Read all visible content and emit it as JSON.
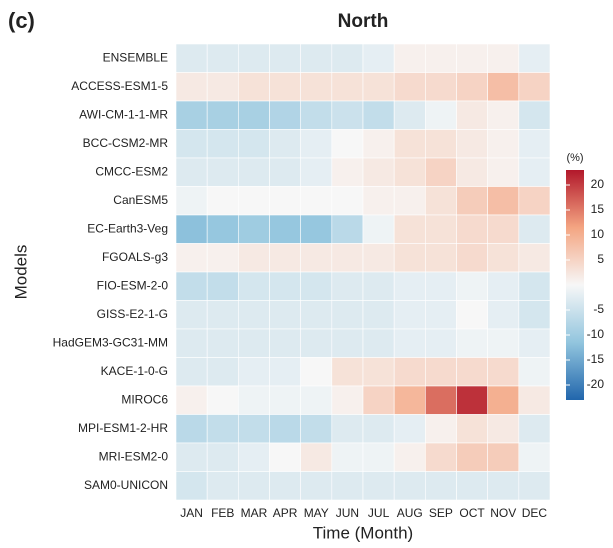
{
  "chart_data": {
    "type": "heatmap",
    "panel_label": "(c)",
    "title": "North",
    "x_label": "Time (Month)",
    "y_label": "Models",
    "categories": [
      "JAN",
      "FEB",
      "MAR",
      "APR",
      "MAY",
      "JUN",
      "JUL",
      "AUG",
      "SEP",
      "OCT",
      "NOV",
      "DEC"
    ],
    "rows": [
      "ENSEMBLE",
      "ACCESS-ESM1-5",
      "AWI-CM-1-1-MR",
      "BCC-CSM2-MR",
      "CMCC-ESM2",
      "CanESM5",
      "EC-Earth3-Veg",
      "FGOALS-g3",
      "FIO-ESM-2-0",
      "GISS-E2-1-G",
      "HadGEM3-GC31-MM",
      "KACE-1-0-G",
      "MIROC6",
      "MPI-ESM1-2-HR",
      "MRI-ESM2-0",
      "SAM0-UNICON"
    ],
    "values": [
      [
        -3,
        -3,
        -3,
        -3,
        -3,
        -3,
        -2,
        1,
        1,
        1,
        1,
        -2
      ],
      [
        2,
        2,
        3,
        3,
        3,
        3,
        3,
        4,
        4,
        5,
        8,
        5
      ],
      [
        -9,
        -9,
        -9,
        -8,
        -6,
        -5,
        -6,
        -3,
        -1,
        2,
        1,
        -4
      ],
      [
        -4,
        -4,
        -4,
        -3,
        -2,
        0,
        1,
        3,
        3,
        2,
        1,
        -2
      ],
      [
        -3,
        -3,
        -3,
        -3,
        -2,
        1,
        2,
        3,
        5,
        2,
        1,
        -2
      ],
      [
        -1,
        0,
        0,
        0,
        0,
        0,
        1,
        1,
        3,
        6,
        8,
        5
      ],
      [
        -12,
        -11,
        -10,
        -11,
        -11,
        -7,
        -1,
        3,
        3,
        4,
        4,
        -3
      ],
      [
        1,
        1,
        2,
        2,
        2,
        2,
        2,
        3,
        3,
        4,
        3,
        2
      ],
      [
        -6,
        -6,
        -4,
        -4,
        -4,
        -3,
        -3,
        -2,
        -2,
        -1,
        -2,
        -4
      ],
      [
        -3,
        -3,
        -3,
        -3,
        -3,
        -3,
        -3,
        -2,
        -2,
        0,
        -2,
        -4
      ],
      [
        -3,
        -3,
        -3,
        -3,
        -3,
        -3,
        -3,
        -2,
        -2,
        -1,
        -1,
        -2
      ],
      [
        -3,
        -3,
        -2,
        -2,
        0,
        3,
        3,
        4,
        4,
        4,
        4,
        -1
      ],
      [
        1,
        0,
        -1,
        -1,
        -1,
        1,
        5,
        9,
        16,
        21,
        10,
        2
      ],
      [
        -7,
        -6,
        -6,
        -7,
        -6,
        -3,
        -3,
        -2,
        1,
        3,
        2,
        -3
      ],
      [
        -3,
        -3,
        -2,
        0,
        2,
        -1,
        -1,
        1,
        4,
        6,
        6,
        -1
      ],
      [
        -4,
        -3,
        -3,
        -3,
        -3,
        -3,
        -3,
        -3,
        -3,
        -3,
        -3,
        -3
      ]
    ],
    "colorbar_title": "(%)",
    "clim": [
      -23,
      23
    ],
    "cticks": [
      20,
      15,
      10,
      5,
      -5,
      -10,
      -15,
      -20
    ],
    "colors": [
      "#2166ac",
      "#92c5de",
      "#f7f7f7",
      "#f4a582",
      "#b2182b"
    ]
  }
}
